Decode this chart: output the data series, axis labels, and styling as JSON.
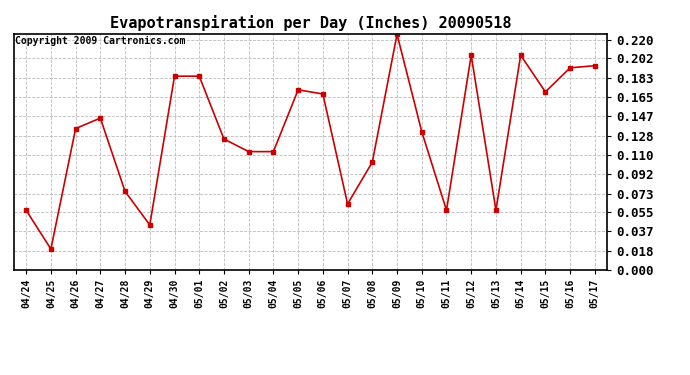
{
  "title": "Evapotranspiration per Day (Inches) 20090518",
  "copyright": "Copyright 2009 Cartronics.com",
  "x_labels": [
    "04/24",
    "04/25",
    "04/26",
    "04/27",
    "04/28",
    "04/29",
    "04/30",
    "05/01",
    "05/02",
    "05/03",
    "05/04",
    "05/05",
    "05/06",
    "05/07",
    "05/08",
    "05/09",
    "05/10",
    "05/11",
    "05/12",
    "05/13",
    "05/14",
    "05/15",
    "05/16",
    "05/17"
  ],
  "y_values": [
    0.057,
    0.02,
    0.135,
    0.145,
    0.075,
    0.043,
    0.185,
    0.185,
    0.125,
    0.113,
    0.113,
    0.172,
    0.168,
    0.063,
    0.103,
    0.225,
    0.132,
    0.057,
    0.205,
    0.057,
    0.205,
    0.17,
    0.193,
    0.195
  ],
  "line_color": "#cc0000",
  "marker": "s",
  "marker_size": 3,
  "bg_color": "#ffffff",
  "grid_color": "#bbbbbb",
  "y_ticks": [
    0.0,
    0.018,
    0.037,
    0.055,
    0.073,
    0.092,
    0.11,
    0.128,
    0.147,
    0.165,
    0.183,
    0.202,
    0.22
  ],
  "ylim": [
    0.0,
    0.2255
  ],
  "title_fontsize": 11,
  "copyright_fontsize": 7,
  "tick_fontsize": 9,
  "xtick_fontsize": 7
}
